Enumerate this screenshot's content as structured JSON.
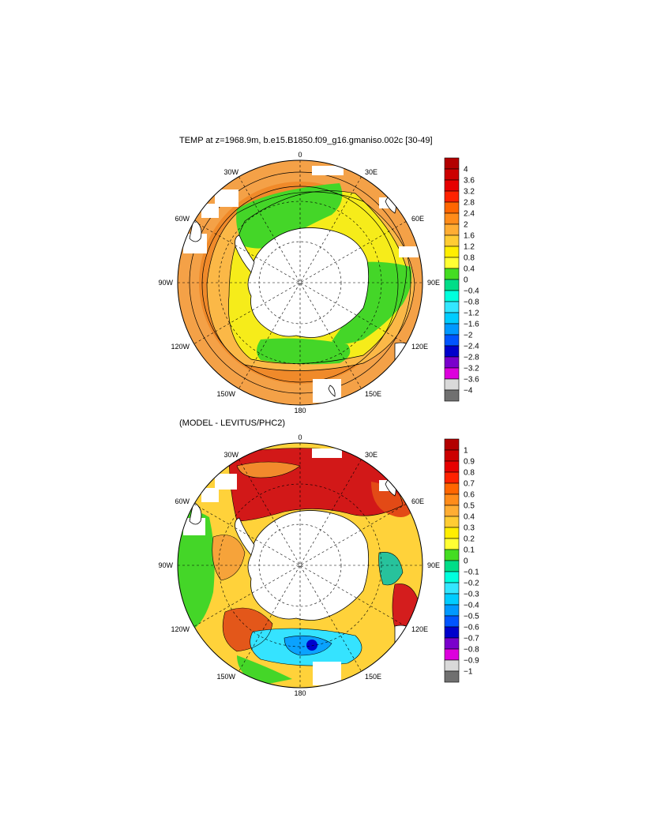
{
  "panel_top": {
    "title": "TEMP at z=1968.9m, b.e15.B1850.f09_g16.gmaniso.002c [30-49]",
    "colorbar_labels": [
      "4",
      "3.6",
      "3.2",
      "2.8",
      "2.4",
      "2",
      "1.6",
      "1.2",
      "0.8",
      "0.4",
      "0",
      "−0.4",
      "−0.8",
      "−1.2",
      "−1.6",
      "−2",
      "−2.4",
      "−2.8",
      "−3.2",
      "−3.6",
      "−4"
    ]
  },
  "panel_bottom": {
    "title": "(MODEL - LEVITUS/PHC2)",
    "colorbar_labels": [
      "1",
      "0.9",
      "0.8",
      "0.7",
      "0.6",
      "0.5",
      "0.4",
      "0.3",
      "0.2",
      "0.1",
      "0",
      "−0.1",
      "−0.2",
      "−0.3",
      "−0.4",
      "−0.5",
      "−0.6",
      "−0.7",
      "−0.8",
      "−0.9",
      "−1"
    ]
  },
  "longitude_labels": {
    "n0": "0",
    "n30e": "30E",
    "n60e": "60E",
    "n90e": "90E",
    "n120e": "120E",
    "n150e": "150E",
    "n180": "180",
    "n150w": "150W",
    "n120w": "120W",
    "n90w": "90W",
    "n60w": "60W",
    "n30w": "30W"
  },
  "colors": {
    "palette": [
      "#b30000",
      "#cc0000",
      "#e60000",
      "#ff2200",
      "#ff6600",
      "#ff8c1a",
      "#ffad33",
      "#ffcc33",
      "#ffee00",
      "#ffff33",
      "#44dd22",
      "#00dd88",
      "#00ffdd",
      "#33e6ff",
      "#00ccff",
      "#0099ff",
      "#0055ff",
      "#0000cc",
      "#7a00cc",
      "#dd00dd",
      "#d9d9d9",
      "#707070"
    ]
  }
}
